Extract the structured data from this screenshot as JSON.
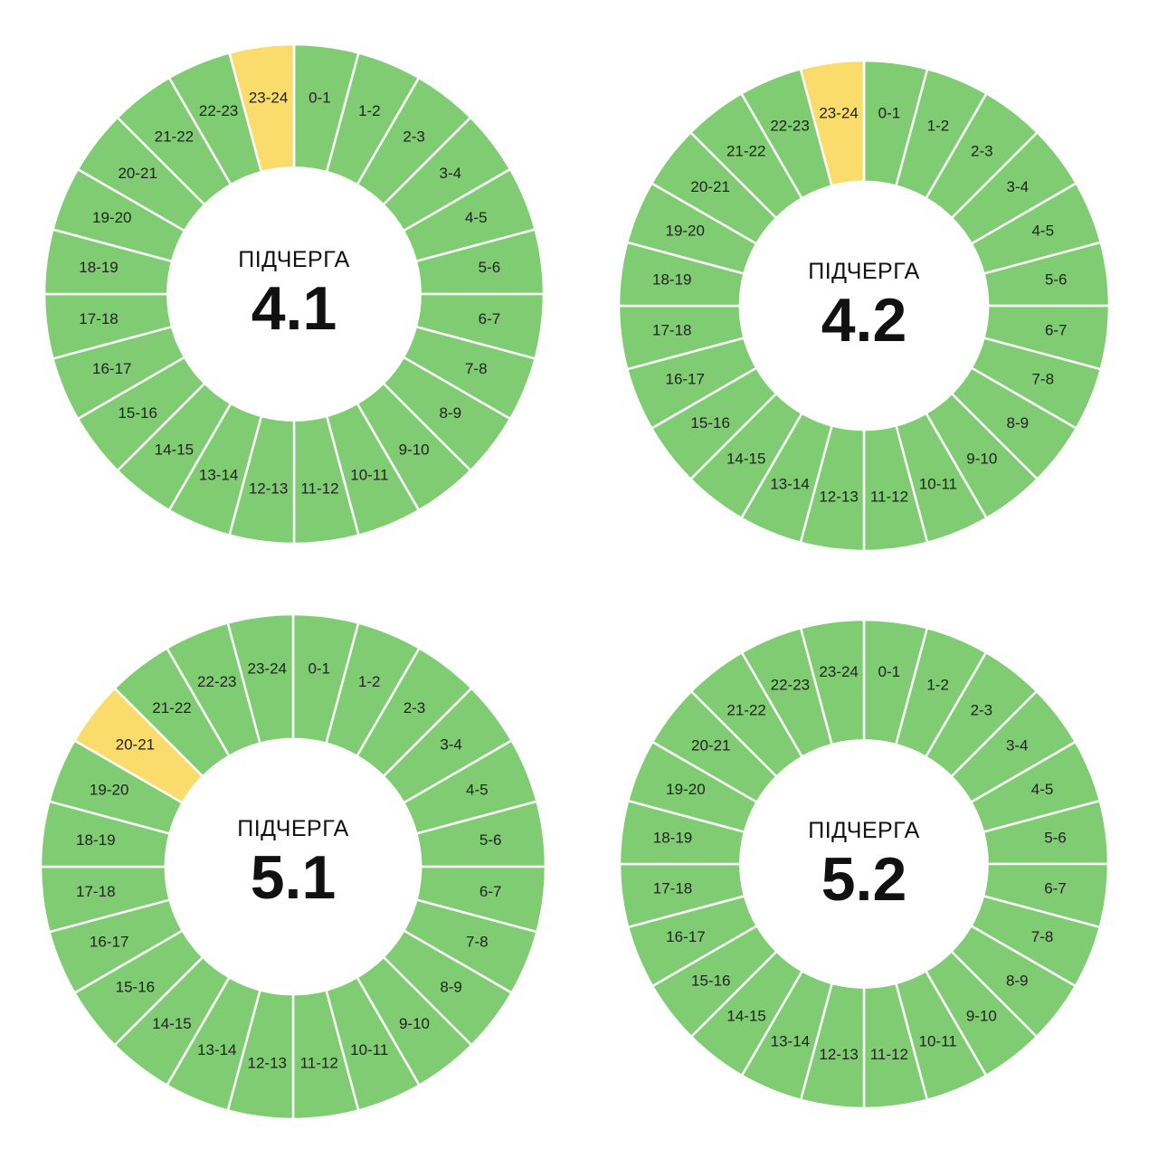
{
  "colors": {
    "on": "#7fcc73",
    "off": "#f9dc6c",
    "separator": "#ffffff",
    "text": "#222222",
    "background": "#ffffff"
  },
  "hour_labels": [
    "0-1",
    "1-2",
    "2-3",
    "3-4",
    "4-5",
    "5-6",
    "6-7",
    "7-8",
    "8-9",
    "9-10",
    "10-11",
    "11-12",
    "12-13",
    "13-14",
    "14-15",
    "15-16",
    "16-17",
    "17-18",
    "18-19",
    "19-20",
    "20-21",
    "21-22",
    "22-23",
    "23-24"
  ],
  "chart_data": [
    {
      "type": "pie",
      "subtitle": "ПІДЧЕРГА",
      "title": "4.1",
      "categories": [
        "0-1",
        "1-2",
        "2-3",
        "3-4",
        "4-5",
        "5-6",
        "6-7",
        "7-8",
        "8-9",
        "9-10",
        "10-11",
        "11-12",
        "12-13",
        "13-14",
        "14-15",
        "15-16",
        "16-17",
        "17-18",
        "18-19",
        "19-20",
        "20-21",
        "21-22",
        "22-23",
        "23-24"
      ],
      "status": [
        "on",
        "on",
        "on",
        "on",
        "on",
        "on",
        "on",
        "on",
        "on",
        "on",
        "on",
        "on",
        "on",
        "on",
        "on",
        "on",
        "on",
        "on",
        "on",
        "on",
        "on",
        "on",
        "on",
        "off"
      ]
    },
    {
      "type": "pie",
      "subtitle": "ПІДЧЕРГА",
      "title": "4.2",
      "categories": [
        "0-1",
        "1-2",
        "2-3",
        "3-4",
        "4-5",
        "5-6",
        "6-7",
        "7-8",
        "8-9",
        "9-10",
        "10-11",
        "11-12",
        "12-13",
        "13-14",
        "14-15",
        "15-16",
        "16-17",
        "17-18",
        "18-19",
        "19-20",
        "20-21",
        "21-22",
        "22-23",
        "23-24"
      ],
      "status": [
        "on",
        "on",
        "on",
        "on",
        "on",
        "on",
        "on",
        "on",
        "on",
        "on",
        "on",
        "on",
        "on",
        "on",
        "on",
        "on",
        "on",
        "on",
        "on",
        "on",
        "on",
        "on",
        "on",
        "off"
      ]
    },
    {
      "type": "pie",
      "subtitle": "ПІДЧЕРГА",
      "title": "5.1",
      "categories": [
        "0-1",
        "1-2",
        "2-3",
        "3-4",
        "4-5",
        "5-6",
        "6-7",
        "7-8",
        "8-9",
        "9-10",
        "10-11",
        "11-12",
        "12-13",
        "13-14",
        "14-15",
        "15-16",
        "16-17",
        "17-18",
        "18-19",
        "19-20",
        "20-21",
        "21-22",
        "22-23",
        "23-24"
      ],
      "status": [
        "on",
        "on",
        "on",
        "on",
        "on",
        "on",
        "on",
        "on",
        "on",
        "on",
        "on",
        "on",
        "on",
        "on",
        "on",
        "on",
        "on",
        "on",
        "on",
        "on",
        "off",
        "on",
        "on",
        "on"
      ]
    },
    {
      "type": "pie",
      "subtitle": "ПІДЧЕРГА",
      "title": "5.2",
      "categories": [
        "0-1",
        "1-2",
        "2-3",
        "3-4",
        "4-5",
        "5-6",
        "6-7",
        "7-8",
        "8-9",
        "9-10",
        "10-11",
        "11-12",
        "12-13",
        "13-14",
        "14-15",
        "15-16",
        "16-17",
        "17-18",
        "18-19",
        "19-20",
        "20-21",
        "21-22",
        "22-23",
        "23-24"
      ],
      "status": [
        "on",
        "on",
        "on",
        "on",
        "on",
        "on",
        "on",
        "on",
        "on",
        "on",
        "on",
        "on",
        "on",
        "on",
        "on",
        "on",
        "on",
        "on",
        "on",
        "on",
        "on",
        "on",
        "on",
        "on"
      ]
    }
  ]
}
